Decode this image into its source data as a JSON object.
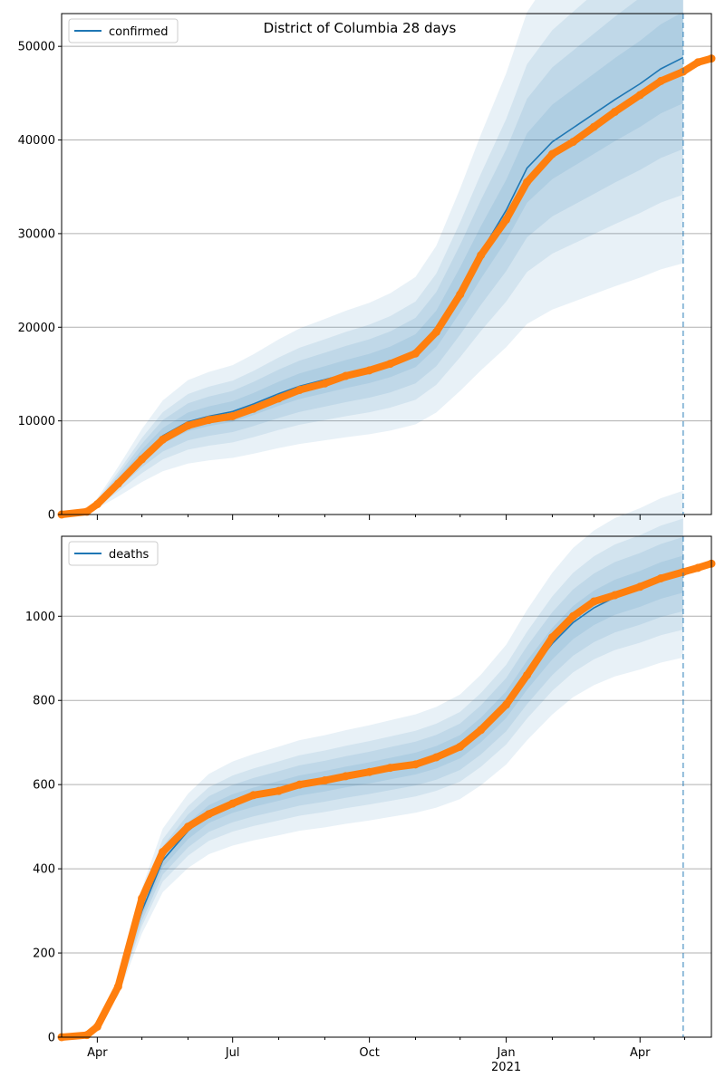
{
  "figure": {
    "title": "District of Columbia 28 days"
  },
  "chart_data": [
    {
      "type": "line",
      "series_name": "confirmed",
      "legend": "upper left",
      "grid": "horizontal",
      "ylim": [
        0,
        53500
      ],
      "yticks": [
        0,
        10000,
        20000,
        30000,
        40000,
        50000
      ],
      "xlim": [
        "2020-03-08",
        "2021-05-19"
      ],
      "vline_date": "2021-04-30",
      "x": [
        "2020-03-08",
        "2020-03-25",
        "2020-04-01",
        "2020-04-15",
        "2020-05-01",
        "2020-05-15",
        "2020-06-01",
        "2020-06-15",
        "2020-07-01",
        "2020-07-15",
        "2020-08-01",
        "2020-08-15",
        "2020-09-01",
        "2020-09-15",
        "2020-10-01",
        "2020-10-15",
        "2020-11-01",
        "2020-11-15",
        "2020-12-01",
        "2020-12-15",
        "2021-01-01",
        "2021-01-15",
        "2021-02-01",
        "2021-02-15",
        "2021-03-01",
        "2021-03-15",
        "2021-04-01",
        "2021-04-15",
        "2021-04-30"
      ],
      "fit": [
        0,
        300,
        1200,
        3500,
        6300,
        8400,
        9900,
        10500,
        11000,
        11800,
        12900,
        13700,
        14400,
        15000,
        15600,
        16300,
        17500,
        19800,
        24000,
        28000,
        32500,
        37000,
        39800,
        41300,
        42800,
        44300,
        46000,
        47600,
        48800
      ],
      "band_halfwidth_pct": [
        0.1,
        0.2,
        0.3,
        0.45
      ],
      "observed_x": [
        "2020-03-08",
        "2020-03-25",
        "2020-04-01",
        "2020-04-15",
        "2020-05-01",
        "2020-05-15",
        "2020-06-01",
        "2020-06-15",
        "2020-07-01",
        "2020-07-15",
        "2020-08-01",
        "2020-08-15",
        "2020-09-01",
        "2020-09-15",
        "2020-10-01",
        "2020-10-15",
        "2020-11-01",
        "2020-11-15",
        "2020-12-01",
        "2020-12-15",
        "2021-01-01",
        "2021-01-15",
        "2021-02-01",
        "2021-02-15",
        "2021-03-01",
        "2021-03-15",
        "2021-04-01",
        "2021-04-15",
        "2021-04-30",
        "2021-05-10",
        "2021-05-19"
      ],
      "observed": [
        0,
        300,
        1100,
        3300,
        5900,
        8000,
        9500,
        10100,
        10500,
        11300,
        12400,
        13300,
        14000,
        14800,
        15400,
        16100,
        17200,
        19500,
        23500,
        27700,
        31500,
        35500,
        38500,
        39800,
        41400,
        43000,
        44800,
        46300,
        47300,
        48300,
        48700
      ]
    },
    {
      "type": "line",
      "series_name": "deaths",
      "legend": "upper left",
      "grid": "horizontal",
      "ylim": [
        0,
        1190
      ],
      "yticks": [
        0,
        200,
        400,
        600,
        800,
        1000
      ],
      "xlim": [
        "2020-03-08",
        "2021-05-19"
      ],
      "vline_date": "2021-04-30",
      "x": [
        "2020-03-08",
        "2020-03-25",
        "2020-04-01",
        "2020-04-15",
        "2020-05-01",
        "2020-05-15",
        "2020-06-01",
        "2020-06-15",
        "2020-07-01",
        "2020-07-15",
        "2020-08-01",
        "2020-08-15",
        "2020-09-01",
        "2020-09-15",
        "2020-10-01",
        "2020-10-15",
        "2020-11-01",
        "2020-11-15",
        "2020-12-01",
        "2020-12-15",
        "2021-01-01",
        "2021-01-15",
        "2021-02-01",
        "2021-02-15",
        "2021-03-01",
        "2021-03-15",
        "2021-04-01",
        "2021-04-15",
        "2021-04-30"
      ],
      "fit": [
        0,
        8,
        30,
        120,
        300,
        420,
        490,
        530,
        555,
        570,
        585,
        598,
        608,
        618,
        628,
        638,
        650,
        665,
        690,
        730,
        790,
        860,
        935,
        985,
        1020,
        1045,
        1065,
        1085,
        1100
      ],
      "band_halfwidth_pct": [
        0.04,
        0.08,
        0.12,
        0.18
      ],
      "observed_x": [
        "2020-03-08",
        "2020-03-25",
        "2020-04-01",
        "2020-04-15",
        "2020-05-01",
        "2020-05-15",
        "2020-06-01",
        "2020-06-15",
        "2020-07-01",
        "2020-07-15",
        "2020-08-01",
        "2020-08-15",
        "2020-09-01",
        "2020-09-15",
        "2020-10-01",
        "2020-10-15",
        "2020-11-01",
        "2020-11-15",
        "2020-12-01",
        "2020-12-15",
        "2021-01-01",
        "2021-01-15",
        "2021-02-01",
        "2021-02-15",
        "2021-03-01",
        "2021-03-15",
        "2021-04-01",
        "2021-04-15",
        "2021-04-30",
        "2021-05-10",
        "2021-05-19"
      ],
      "observed": [
        0,
        5,
        25,
        120,
        330,
        440,
        500,
        530,
        555,
        575,
        585,
        600,
        610,
        620,
        630,
        640,
        648,
        665,
        690,
        730,
        790,
        860,
        950,
        1000,
        1035,
        1050,
        1070,
        1090,
        1105,
        1115,
        1125
      ]
    }
  ],
  "x_axis": {
    "tick_labels": [
      {
        "date": "2020-04-01",
        "label": "Apr"
      },
      {
        "date": "2020-07-01",
        "label": "Jul"
      },
      {
        "date": "2020-10-01",
        "label": "Oct"
      },
      {
        "date": "2021-01-01",
        "label": "Jan"
      },
      {
        "date": "2021-04-01",
        "label": "Apr"
      }
    ],
    "year_label": "2021",
    "minor_ticks": [
      "2020-05-01",
      "2020-06-01",
      "2020-08-01",
      "2020-09-01",
      "2020-11-01",
      "2020-12-01",
      "2021-02-01",
      "2021-03-01",
      "2021-05-01"
    ]
  },
  "colors": {
    "fit_line": "#1f77b4",
    "band": "#1f77b4",
    "observed": "#ff7f0e",
    "grid": "#b0b0b0",
    "vline": "#1f77b4"
  }
}
